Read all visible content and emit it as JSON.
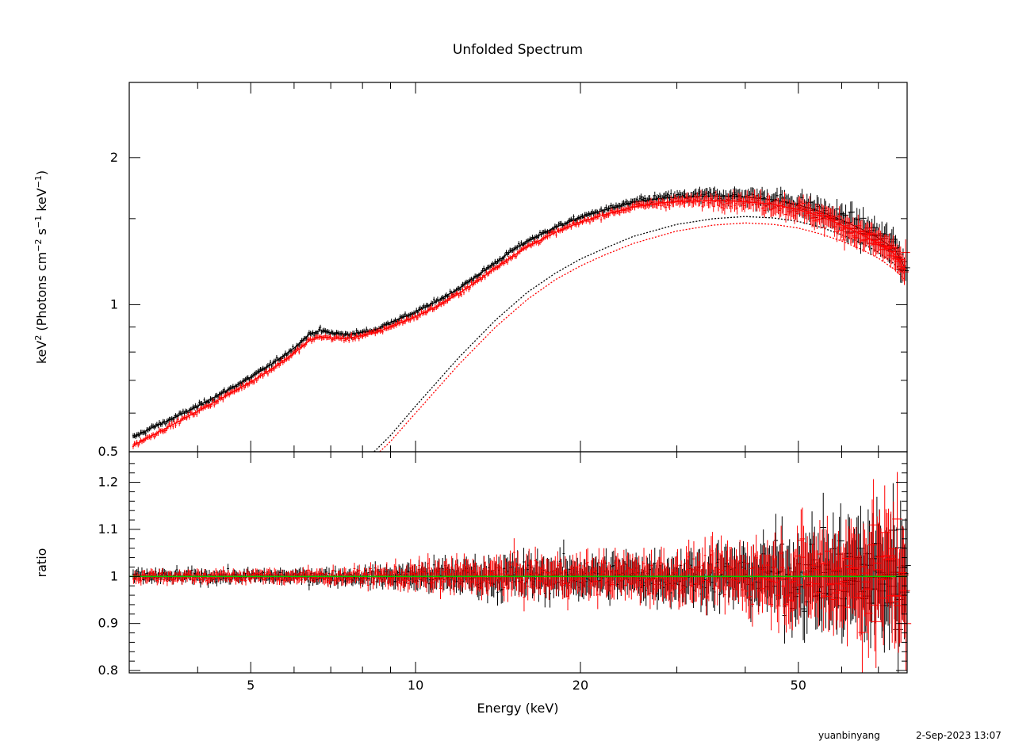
{
  "chart_data": [
    {
      "type": "scatter",
      "title": "Unfolded Spectrum",
      "xlabel": "Energy (keV)",
      "ylabel_parts": [
        "keV",
        "2",
        " (Photons cm",
        "−2",
        " s",
        "−1",
        " keV",
        "−1",
        ")"
      ],
      "xscale": "log",
      "yscale": "log",
      "xlim": [
        3.0,
        79.0
      ],
      "ylim": [
        0.5,
        2.85
      ],
      "xticks": [
        5,
        10,
        20,
        50
      ],
      "yticks": [
        0.5,
        1,
        2
      ],
      "ytick_labels": [
        "0.5",
        "1",
        "2"
      ],
      "legend": "none",
      "series": [
        {
          "color": "#000000",
          "kind": "data points with error bars",
          "points": [
            [
              3.05,
              0.535
            ],
            [
              3.3,
              0.56
            ],
            [
              3.6,
              0.585
            ],
            [
              4.0,
              0.62
            ],
            [
              4.5,
              0.665
            ],
            [
              5.0,
              0.71
            ],
            [
              5.5,
              0.76
            ],
            [
              6.0,
              0.815
            ],
            [
              6.4,
              0.87
            ],
            [
              6.7,
              0.885
            ],
            [
              7.0,
              0.875
            ],
            [
              7.5,
              0.868
            ],
            [
              8.0,
              0.878
            ],
            [
              8.5,
              0.89
            ],
            [
              9.0,
              0.92
            ],
            [
              10.0,
              0.965
            ],
            [
              11.0,
              1.02
            ],
            [
              12.0,
              1.08
            ],
            [
              13.0,
              1.15
            ],
            [
              14.0,
              1.22
            ],
            [
              15.0,
              1.29
            ],
            [
              16.0,
              1.35
            ],
            [
              18.0,
              1.44
            ],
            [
              20.0,
              1.51
            ],
            [
              22.0,
              1.56
            ],
            [
              25.0,
              1.62
            ],
            [
              28.0,
              1.65
            ],
            [
              30.0,
              1.66
            ],
            [
              35.0,
              1.67
            ],
            [
              40.0,
              1.66
            ],
            [
              45.0,
              1.64
            ],
            [
              50.0,
              1.6
            ],
            [
              55.0,
              1.55
            ],
            [
              60.0,
              1.49
            ],
            [
              65.0,
              1.43
            ],
            [
              70.0,
              1.37
            ],
            [
              75.0,
              1.3
            ],
            [
              78.0,
              1.2
            ]
          ]
        },
        {
          "color": "#ff0000",
          "kind": "data points with error bars",
          "points": [
            [
              3.05,
              0.515
            ],
            [
              3.3,
              0.54
            ],
            [
              3.6,
              0.568
            ],
            [
              4.0,
              0.605
            ],
            [
              4.5,
              0.65
            ],
            [
              5.0,
              0.695
            ],
            [
              5.5,
              0.742
            ],
            [
              6.0,
              0.795
            ],
            [
              6.4,
              0.845
            ],
            [
              6.7,
              0.86
            ],
            [
              7.0,
              0.855
            ],
            [
              7.5,
              0.852
            ],
            [
              8.0,
              0.865
            ],
            [
              8.5,
              0.878
            ],
            [
              9.0,
              0.902
            ],
            [
              10.0,
              0.945
            ],
            [
              11.0,
              0.995
            ],
            [
              12.0,
              1.055
            ],
            [
              13.0,
              1.12
            ],
            [
              14.0,
              1.19
            ],
            [
              15.0,
              1.255
            ],
            [
              16.0,
              1.315
            ],
            [
              18.0,
              1.405
            ],
            [
              20.0,
              1.475
            ],
            [
              22.0,
              1.525
            ],
            [
              25.0,
              1.585
            ],
            [
              28.0,
              1.615
            ],
            [
              30.0,
              1.625
            ],
            [
              35.0,
              1.635
            ],
            [
              40.0,
              1.625
            ],
            [
              45.0,
              1.605
            ],
            [
              50.0,
              1.565
            ],
            [
              55.0,
              1.515
            ],
            [
              60.0,
              1.455
            ],
            [
              65.0,
              1.395
            ],
            [
              70.0,
              1.335
            ],
            [
              75.0,
              1.27
            ],
            [
              78.0,
              1.18
            ]
          ]
        },
        {
          "color": "#000000",
          "kind": "dotted model component",
          "points": [
            [
              8.4,
              0.5
            ],
            [
              9.0,
              0.54
            ],
            [
              10.0,
              0.62
            ],
            [
              12.0,
              0.78
            ],
            [
              14.0,
              0.93
            ],
            [
              16.0,
              1.06
            ],
            [
              18.0,
              1.16
            ],
            [
              20.0,
              1.24
            ],
            [
              22.0,
              1.3
            ],
            [
              25.0,
              1.38
            ],
            [
              30.0,
              1.46
            ],
            [
              35.0,
              1.5
            ],
            [
              40.0,
              1.515
            ],
            [
              45.0,
              1.505
            ],
            [
              50.0,
              1.48
            ],
            [
              55.0,
              1.44
            ],
            [
              60.0,
              1.39
            ],
            [
              65.0,
              1.34
            ],
            [
              70.0,
              1.28
            ],
            [
              75.0,
              1.21
            ],
            [
              78.0,
              1.16
            ]
          ]
        },
        {
          "color": "#ff0000",
          "kind": "dotted model component",
          "points": [
            [
              8.6,
              0.5
            ],
            [
              9.0,
              0.525
            ],
            [
              10.0,
              0.6
            ],
            [
              12.0,
              0.755
            ],
            [
              14.0,
              0.9
            ],
            [
              16.0,
              1.025
            ],
            [
              18.0,
              1.125
            ],
            [
              20.0,
              1.2
            ],
            [
              22.0,
              1.26
            ],
            [
              25.0,
              1.335
            ],
            [
              30.0,
              1.415
            ],
            [
              35.0,
              1.455
            ],
            [
              40.0,
              1.47
            ],
            [
              45.0,
              1.46
            ],
            [
              50.0,
              1.435
            ],
            [
              55.0,
              1.395
            ],
            [
              60.0,
              1.35
            ],
            [
              65.0,
              1.3
            ],
            [
              70.0,
              1.245
            ],
            [
              75.0,
              1.18
            ],
            [
              78.0,
              1.13
            ]
          ]
        }
      ]
    },
    {
      "type": "scatter",
      "xlabel": "Energy (keV)",
      "ylabel": "ratio",
      "xscale": "log",
      "xlim": [
        3.0,
        79.0
      ],
      "ylim": [
        0.795,
        1.265
      ],
      "xticks": [
        5,
        10,
        20,
        50
      ],
      "xtick_labels": [
        "5",
        "10",
        "20",
        "50"
      ],
      "yticks": [
        0.8,
        0.9,
        1,
        1.1,
        1.2
      ],
      "ytick_labels": [
        "0.8",
        "0.9",
        "1",
        "1.1",
        "1.2"
      ],
      "reference_line": {
        "y": 1.0,
        "color": "#00c800"
      },
      "scatter_envelope": [
        [
          3.0,
          0.02
        ],
        [
          5.0,
          0.02
        ],
        [
          8.0,
          0.025
        ],
        [
          10.0,
          0.04
        ],
        [
          15.0,
          0.06
        ],
        [
          20.0,
          0.06
        ],
        [
          30.0,
          0.07
        ],
        [
          40.0,
          0.09
        ],
        [
          50.0,
          0.13
        ],
        [
          60.0,
          0.16
        ],
        [
          70.0,
          0.2
        ],
        [
          79.0,
          0.2
        ]
      ],
      "series": [
        {
          "color": "#000000",
          "kind": "ratio points with error bars",
          "y_center": 1.0
        },
        {
          "color": "#ff0000",
          "kind": "ratio points with error bars",
          "y_center": 1.0
        }
      ]
    }
  ],
  "footer": {
    "user": "yuanbinyang",
    "timestamp": "2-Sep-2023 13:07"
  }
}
